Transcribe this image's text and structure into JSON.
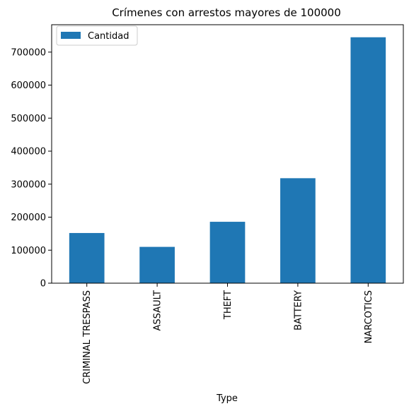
{
  "chart_data": {
    "type": "bar",
    "title": "Crímenes con arrestos mayores de 100000",
    "xlabel": "Type",
    "ylabel": "",
    "categories": [
      "CRIMINAL TRESPASS",
      "ASSAULT",
      "THEFT",
      "BATTERY",
      "NARCOTICS"
    ],
    "series": [
      {
        "name": "Cantidad",
        "values": [
          152000,
          110000,
          186000,
          318000,
          745000
        ],
        "color": "#1f77b4"
      }
    ],
    "ylim": [
      0,
      783000
    ],
    "yticks": [
      0,
      100000,
      200000,
      300000,
      400000,
      500000,
      600000,
      700000
    ],
    "ytick_labels": [
      "0",
      "100000",
      "200000",
      "300000",
      "400000",
      "500000",
      "600000",
      "700000"
    ],
    "grid": false,
    "legend_position": "top-left"
  }
}
